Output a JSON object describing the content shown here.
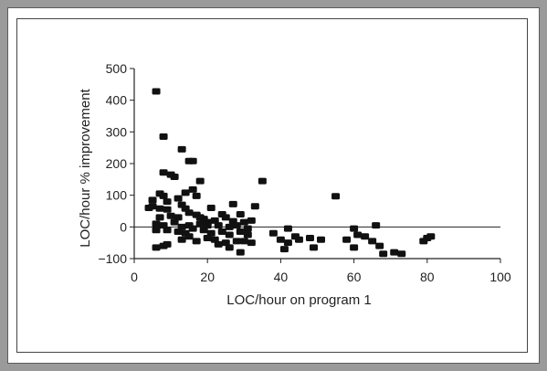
{
  "chart_data": {
    "type": "scatter",
    "title": "",
    "xlabel": "LOC/hour on program 1",
    "ylabel": "LOC/hour % improvement",
    "xlim": [
      0,
      100
    ],
    "ylim": [
      -100,
      500
    ],
    "xticks": [
      "0",
      "20",
      "40",
      "60",
      "80",
      "100"
    ],
    "yticks": [
      "500",
      "400",
      "300",
      "200",
      "100",
      "0",
      "−100"
    ],
    "grid": false,
    "reference_line_y": 0,
    "points": [
      [
        6,
        428
      ],
      [
        8,
        285
      ],
      [
        13,
        245
      ],
      [
        15,
        208
      ],
      [
        16,
        208
      ],
      [
        8,
        172
      ],
      [
        10,
        165
      ],
      [
        11,
        158
      ],
      [
        18,
        145
      ],
      [
        35,
        145
      ],
      [
        55,
        97
      ],
      [
        5,
        85
      ],
      [
        7,
        105
      ],
      [
        8,
        98
      ],
      [
        12,
        90
      ],
      [
        14,
        108
      ],
      [
        16,
        118
      ],
      [
        17,
        98
      ],
      [
        27,
        72
      ],
      [
        4,
        60
      ],
      [
        5,
        65
      ],
      [
        7,
        58
      ],
      [
        9,
        55
      ],
      [
        14,
        58
      ],
      [
        21,
        60
      ],
      [
        24,
        40
      ],
      [
        29,
        40
      ],
      [
        33,
        65
      ],
      [
        10,
        35
      ],
      [
        12,
        30
      ],
      [
        15,
        45
      ],
      [
        17,
        38
      ],
      [
        19,
        25
      ],
      [
        22,
        20
      ],
      [
        25,
        30
      ],
      [
        27,
        18
      ],
      [
        30,
        15
      ],
      [
        6,
        10
      ],
      [
        8,
        5
      ],
      [
        11,
        15
      ],
      [
        13,
        0
      ],
      [
        15,
        5
      ],
      [
        18,
        10
      ],
      [
        20,
        15
      ],
      [
        23,
        5
      ],
      [
        26,
        0
      ],
      [
        28,
        5
      ],
      [
        31,
        -5
      ],
      [
        32,
        20
      ],
      [
        42,
        -5
      ],
      [
        60,
        -5
      ],
      [
        66,
        5
      ],
      [
        9,
        -10
      ],
      [
        12,
        -15
      ],
      [
        14,
        -20
      ],
      [
        16,
        -5
      ],
      [
        19,
        -10
      ],
      [
        21,
        -20
      ],
      [
        24,
        -15
      ],
      [
        26,
        -25
      ],
      [
        29,
        -15
      ],
      [
        31,
        -25
      ],
      [
        38,
        -20
      ],
      [
        44,
        -30
      ],
      [
        45,
        -40
      ],
      [
        48,
        -35
      ],
      [
        51,
        -40
      ],
      [
        58,
        -40
      ],
      [
        61,
        -25
      ],
      [
        63,
        -30
      ],
      [
        65,
        -45
      ],
      [
        13,
        -40
      ],
      [
        15,
        -30
      ],
      [
        17,
        -45
      ],
      [
        20,
        -35
      ],
      [
        22,
        -40
      ],
      [
        25,
        -50
      ],
      [
        28,
        -45
      ],
      [
        30,
        -45
      ],
      [
        32,
        -50
      ],
      [
        40,
        -40
      ],
      [
        42,
        -50
      ],
      [
        80,
        -35
      ],
      [
        81,
        -30
      ],
      [
        6,
        -65
      ],
      [
        8,
        -60
      ],
      [
        9,
        -55
      ],
      [
        23,
        -55
      ],
      [
        26,
        -65
      ],
      [
        29,
        -80
      ],
      [
        41,
        -70
      ],
      [
        49,
        -65
      ],
      [
        60,
        -65
      ],
      [
        67,
        -60
      ],
      [
        68,
        -85
      ],
      [
        71,
        -80
      ],
      [
        73,
        -85
      ],
      [
        79,
        -45
      ],
      [
        6,
        -10
      ],
      [
        7,
        30
      ],
      [
        9,
        80
      ],
      [
        13,
        70
      ],
      [
        18,
        30
      ],
      [
        20,
        5
      ]
    ]
  }
}
